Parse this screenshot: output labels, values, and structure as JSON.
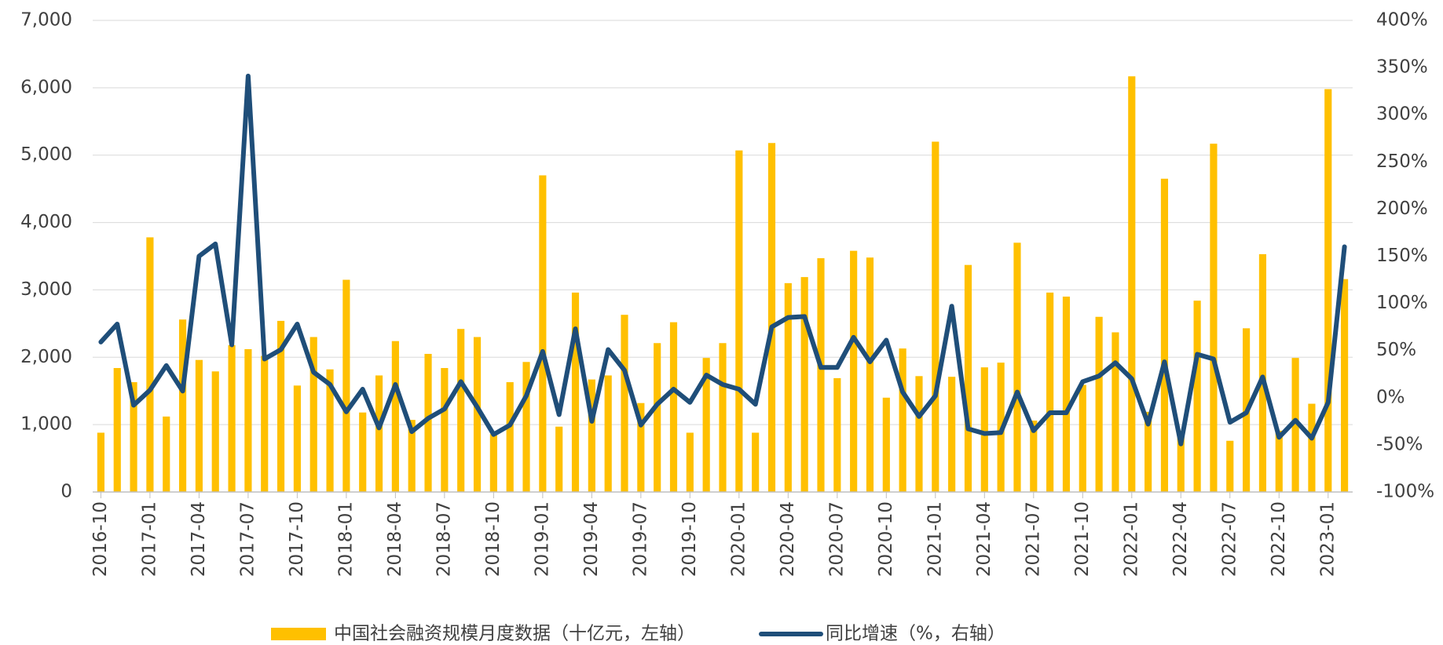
{
  "chart_data": {
    "type": "combo",
    "categories": [
      "2016-10",
      null,
      null,
      "2017-01",
      null,
      null,
      "2017-04",
      null,
      null,
      "2017-07",
      null,
      null,
      "2017-10",
      null,
      null,
      "2018-01",
      null,
      null,
      "2018-04",
      null,
      null,
      "2018-07",
      null,
      null,
      "2018-10",
      null,
      null,
      "2019-01",
      null,
      null,
      "2019-04",
      null,
      null,
      "2019-07",
      null,
      null,
      "2019-10",
      null,
      null,
      "2020-01",
      null,
      null,
      "2020-04",
      null,
      null,
      "2020-07",
      null,
      null,
      "2020-10",
      null,
      null,
      "2021-01",
      null,
      null,
      "2021-04",
      null,
      null,
      "2021-07",
      null,
      null,
      "2021-10",
      null,
      null,
      "2022-01",
      null,
      null,
      "2022-04",
      null,
      null,
      "2022-07",
      null,
      null,
      "2022-10",
      null,
      null,
      "2023-01",
      null
    ],
    "series": [
      {
        "name": "中国社会融资规模月度数据（十亿元，左轴）",
        "type": "bar",
        "color": "#FFC000",
        "axis": "y",
        "values": [
          880,
          1840,
          1630,
          3780,
          1120,
          2560,
          1960,
          1790,
          2180,
          2120,
          2020,
          2540,
          1580,
          2300,
          1820,
          3150,
          1180,
          1730,
          2240,
          1070,
          2050,
          1840,
          2420,
          2300,
          860,
          1630,
          1930,
          4700,
          970,
          2960,
          1670,
          1730,
          2630,
          1320,
          2210,
          2520,
          880,
          1990,
          2210,
          5070,
          880,
          5180,
          3100,
          3190,
          3470,
          1690,
          3580,
          3480,
          1400,
          2130,
          1720,
          5200,
          1710,
          3370,
          1850,
          1920,
          3700,
          1060,
          2960,
          2900,
          1590,
          2600,
          2370,
          6170,
          1190,
          4650,
          910,
          2840,
          5170,
          760,
          2430,
          3530,
          910,
          1990,
          1310,
          5980,
          3160
        ]
      },
      {
        "name": "同比增速（%，右轴）",
        "type": "line",
        "color": "#1F4E79",
        "axis": "y2",
        "values": [
          59,
          78,
          -8,
          8,
          34,
          7,
          150,
          163,
          56,
          341,
          41,
          51,
          78,
          27,
          14,
          -15,
          9,
          -32,
          14,
          -36,
          -22,
          -12,
          17,
          -10,
          -39,
          -29,
          2,
          49,
          -18,
          73,
          -25,
          51,
          29,
          -29,
          -7,
          9,
          -5,
          24,
          14,
          9,
          -7,
          75,
          85,
          86,
          32,
          32,
          64,
          38,
          61,
          6,
          -20,
          2,
          97,
          -33,
          -38,
          -37,
          6,
          -35,
          -16,
          -16,
          17,
          23,
          37,
          20,
          -28,
          38,
          -49,
          46,
          41,
          -26,
          -16,
          22,
          -42,
          -24,
          -43,
          -5,
          160
        ]
      }
    ],
    "ylim": [
      0,
      7000
    ],
    "yticks": [
      0,
      {
        "value": 1000,
        "label": "1,000"
      },
      {
        "value": 2000,
        "label": "2,000"
      },
      {
        "value": 3000,
        "label": "3,000"
      },
      {
        "value": 4000,
        "label": "4,000"
      },
      {
        "value": 5000,
        "label": "5,000"
      },
      {
        "value": 6000,
        "label": "6,000"
      },
      {
        "value": 7000,
        "label": "7,000"
      }
    ],
    "y2lim": [
      -100,
      400
    ],
    "y2ticks": [
      {
        "value": -100,
        "label": "-100%"
      },
      {
        "value": -50,
        "label": "-50%"
      },
      {
        "value": 0,
        "label": "0%"
      },
      {
        "value": 50,
        "label": "50%"
      },
      {
        "value": 100,
        "label": "100%"
      },
      {
        "value": 150,
        "label": "150%"
      },
      {
        "value": 200,
        "label": "200%"
      },
      {
        "value": 250,
        "label": "250%"
      },
      {
        "value": 300,
        "label": "300%"
      },
      {
        "value": 350,
        "label": "350%"
      },
      {
        "value": 400,
        "label": "400%"
      }
    ],
    "grid": true,
    "legend": "bottom"
  }
}
